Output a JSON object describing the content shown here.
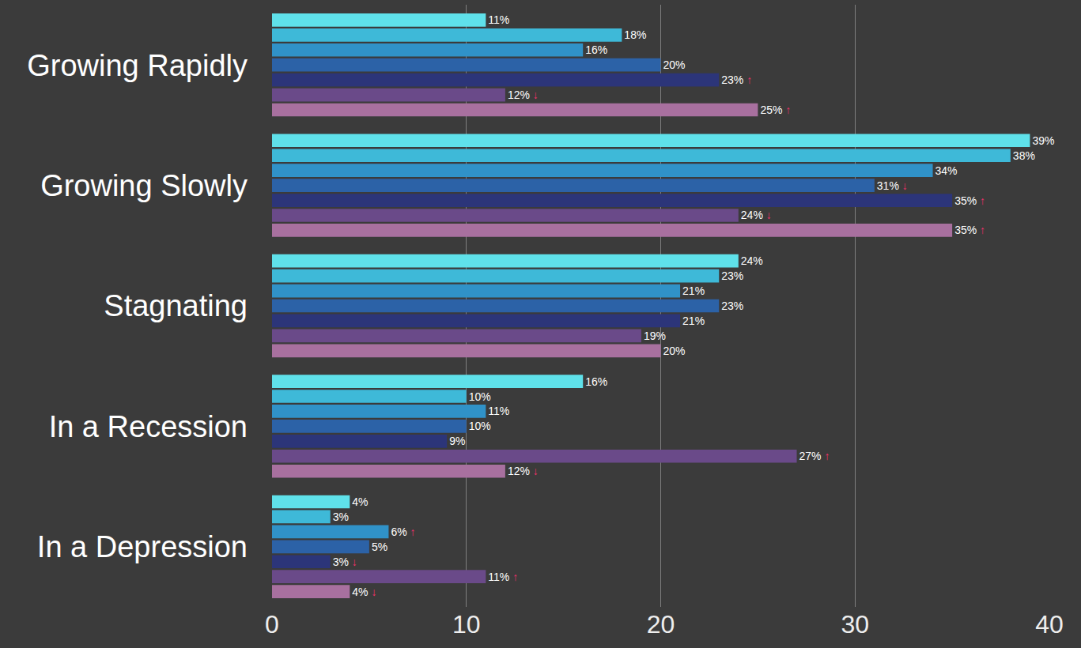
{
  "chart_data": {
    "type": "bar",
    "orientation": "horizontal",
    "data_labels": true,
    "grid": true,
    "categories": [
      "Growing Rapidly",
      "Growing Slowly",
      "Stagnating",
      "In a Recession",
      "In a Depression"
    ],
    "xlim": [
      0,
      40
    ],
    "xticks": [
      0,
      10,
      20,
      30,
      40
    ],
    "series": [
      {
        "color": "#5fe1ea",
        "values": [
          11,
          39,
          24,
          16,
          4
        ],
        "value_labels": [
          "11%",
          "39%",
          "24%",
          "16%",
          "4%"
        ],
        "value_marks": [
          null,
          null,
          null,
          null,
          null
        ]
      },
      {
        "color": "#3eb9d8",
        "values": [
          18,
          38,
          23,
          10,
          3
        ],
        "value_labels": [
          "18%",
          "38%",
          "23%",
          "10%",
          "3%"
        ],
        "value_marks": [
          null,
          null,
          null,
          null,
          null
        ]
      },
      {
        "color": "#3092c8",
        "values": [
          16,
          34,
          21,
          11,
          6
        ],
        "value_labels": [
          "16%",
          "34%",
          "21%",
          "11%",
          "6%"
        ],
        "value_marks": [
          null,
          null,
          null,
          null,
          "↑"
        ]
      },
      {
        "color": "#2c62a7",
        "values": [
          20,
          31,
          23,
          10,
          5
        ],
        "value_labels": [
          "20%",
          "31%",
          "23%",
          "10%",
          "5%"
        ],
        "value_marks": [
          null,
          "↓",
          null,
          null,
          null
        ]
      },
      {
        "color": "#2c3579",
        "values": [
          23,
          35,
          21,
          9,
          3
        ],
        "value_labels": [
          "23%",
          "35%",
          "21%",
          "9%",
          "3%"
        ],
        "value_marks": [
          "↑",
          "↑",
          null,
          null,
          "↓"
        ]
      },
      {
        "color": "#6a4a89",
        "values": [
          12,
          24,
          19,
          27,
          11
        ],
        "value_labels": [
          "12%",
          "24%",
          "19%",
          "27%",
          "11%"
        ],
        "value_marks": [
          "↓",
          "↓",
          null,
          "↑",
          "↑"
        ]
      },
      {
        "color": "#a8709f",
        "values": [
          25,
          35,
          20,
          12,
          4
        ],
        "value_labels": [
          "25%",
          "35%",
          "20%",
          "12%",
          "4%"
        ],
        "value_marks": [
          "↑",
          "↑",
          null,
          "↓",
          "↓"
        ]
      }
    ]
  }
}
